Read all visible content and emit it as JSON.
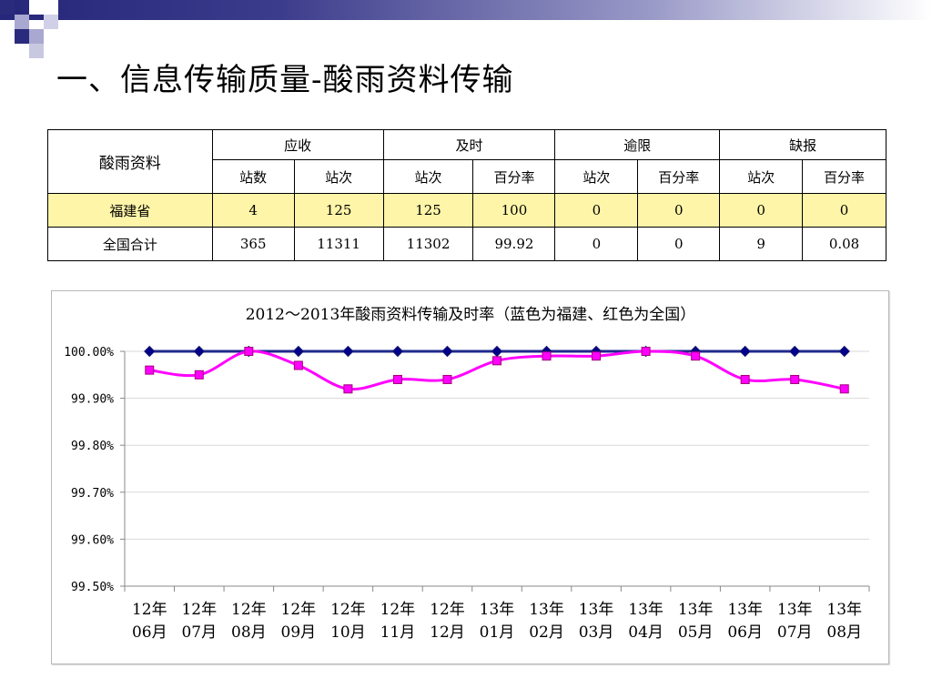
{
  "slide_title": "一、信息传输质量-酸雨资料传输",
  "table": {
    "corner": "酸雨资料",
    "groups": [
      "应收",
      "及时",
      "逾限",
      "缺报"
    ],
    "subheaders": [
      "站数",
      "站次",
      "站次",
      "百分率",
      "站次",
      "百分率",
      "站次",
      "百分率"
    ],
    "rows": [
      {
        "name": "福建省",
        "values": [
          "4",
          "125",
          "125",
          "100",
          "0",
          "0",
          "0",
          "0"
        ]
      },
      {
        "name": "全国合计",
        "values": [
          "365",
          "11311",
          "11302",
          "99.92",
          "0",
          "0",
          "9",
          "0.08"
        ]
      }
    ]
  },
  "chart_data": {
    "type": "line",
    "title": "2012～2013年酸雨资料传输及时率（蓝色为福建、红色为全国）",
    "categories": [
      [
        "12年",
        "06月"
      ],
      [
        "12年",
        "07月"
      ],
      [
        "12年",
        "08月"
      ],
      [
        "12年",
        "09月"
      ],
      [
        "12年",
        "10月"
      ],
      [
        "12年",
        "11月"
      ],
      [
        "12年",
        "12月"
      ],
      [
        "13年",
        "01月"
      ],
      [
        "13年",
        "02月"
      ],
      [
        "13年",
        "03月"
      ],
      [
        "13年",
        "04月"
      ],
      [
        "13年",
        "05月"
      ],
      [
        "13年",
        "06月"
      ],
      [
        "13年",
        "07月"
      ],
      [
        "13年",
        "08月"
      ]
    ],
    "ylim": [
      99.5,
      100.0
    ],
    "yticks": [
      "99.50%",
      "99.60%",
      "99.70%",
      "99.80%",
      "99.90%",
      "100.00%"
    ],
    "ytick_values": [
      99.5,
      99.6,
      99.7,
      99.8,
      99.9,
      100.0
    ],
    "grid": true,
    "series": [
      {
        "color": "#1f2a8c",
        "marker": "diamond",
        "values": [
          100,
          100,
          100,
          100,
          100,
          100,
          100,
          100,
          100,
          100,
          100,
          100,
          100,
          100,
          100
        ]
      },
      {
        "color": "#ff00ff",
        "marker": "square",
        "values": [
          99.96,
          99.95,
          100.0,
          99.97,
          99.92,
          99.94,
          99.94,
          99.98,
          99.99,
          99.99,
          100.0,
          99.99,
          99.94,
          99.94,
          99.92
        ]
      }
    ],
    "colors": {
      "decor_square_dark": "#2b2b7d",
      "decor_square_light": "#a8a8d0",
      "table_highlight": "#fef5a8"
    }
  }
}
